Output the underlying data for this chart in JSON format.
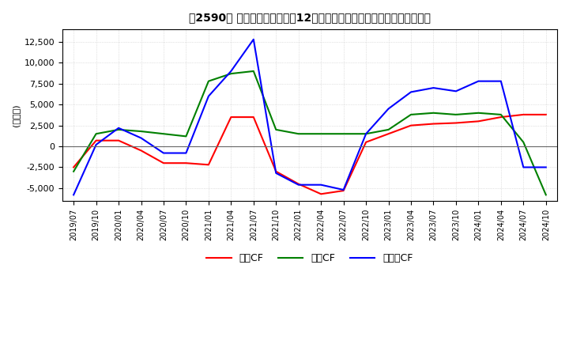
{
  "title": "　2590、 キャッシュフローの12か月移動合計の対前年同期増減額の推移",
  "title_bracket_open": "　2590、",
  "ylabel": "(百万円)",
  "ylim": [
    -6500,
    14000
  ],
  "yticks": [
    -5000,
    -2500,
    0,
    2500,
    5000,
    7500,
    10000,
    12500
  ],
  "dates": [
    "2019/07",
    "2019/10",
    "2020/01",
    "2020/04",
    "2020/07",
    "2020/10",
    "2021/01",
    "2021/04",
    "2021/07",
    "2021/10",
    "2022/01",
    "2022/04",
    "2022/07",
    "2022/10",
    "2023/01",
    "2023/04",
    "2023/07",
    "2023/10",
    "2024/01",
    "2024/04",
    "2024/07",
    "2024/10"
  ],
  "operating_cf": [
    -2500,
    700,
    700,
    -500,
    -2000,
    -2000,
    -2200,
    3500,
    3500,
    -3000,
    -4500,
    -5700,
    -5300,
    500,
    1500,
    2500,
    2700,
    2800,
    3000,
    3500,
    3800,
    3800
  ],
  "investing_cf": [
    -3000,
    1500,
    2000,
    1800,
    1500,
    1200,
    7800,
    8700,
    9000,
    2000,
    1500,
    1500,
    1500,
    1500,
    2000,
    3800,
    4000,
    3800,
    4000,
    3800,
    500,
    -5800
  ],
  "free_cf": [
    -5800,
    200,
    2200,
    1000,
    -800,
    -800,
    6000,
    9000,
    12800,
    -3200,
    -4600,
    -4600,
    -5200,
    1500,
    4500,
    6500,
    7000,
    6600,
    7800,
    7800,
    -2500,
    -2500
  ],
  "operating_color": "#ff0000",
  "investing_color": "#008000",
  "free_color": "#0000ff",
  "background_color": "#ffffff",
  "grid_color": "#c8c8c8",
  "legend_labels": [
    "営業CF",
    "投資CF",
    "フリーCF"
  ]
}
